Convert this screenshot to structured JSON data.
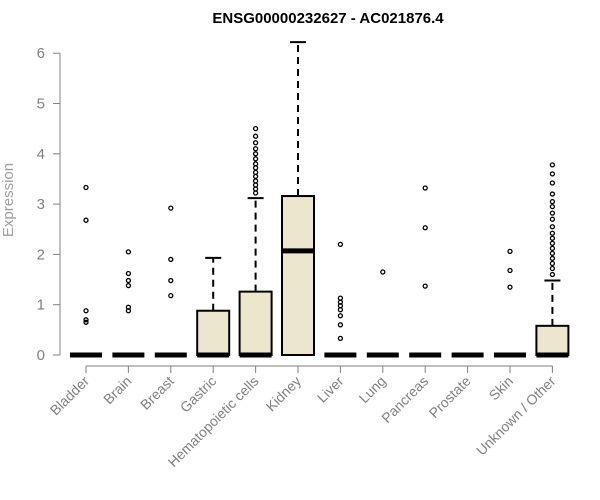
{
  "chart_data": {
    "type": "box",
    "title": "ENSG00000232627 - AC021876.4",
    "ylabel": "Expression",
    "xlabel": "",
    "ylim": [
      0,
      6
    ],
    "yticks": [
      0,
      1,
      2,
      3,
      4,
      5,
      6
    ],
    "grid": false,
    "legend": "none",
    "box_fill": "#ede6cf",
    "box_stroke": "#000000",
    "categories": [
      "Bladder",
      "Brain",
      "Breast",
      "Gastric",
      "Hematopoietic cells",
      "Kidney",
      "Liver",
      "Lung",
      "Pancreas",
      "Prostate",
      "Skin",
      "Unknown / Other"
    ],
    "boxes": [
      {
        "category": "Bladder",
        "whisker_low": 0,
        "q1": 0,
        "median": 0,
        "q3": 0,
        "whisker_high": 0,
        "outliers": [
          0.65,
          0.7,
          0.88,
          2.68,
          3.33
        ]
      },
      {
        "category": "Brain",
        "whisker_low": 0,
        "q1": 0,
        "median": 0,
        "q3": 0,
        "whisker_high": 0,
        "outliers": [
          0.88,
          0.95,
          1.38,
          1.48,
          1.62,
          2.05
        ]
      },
      {
        "category": "Breast",
        "whisker_low": 0,
        "q1": 0,
        "median": 0,
        "q3": 0,
        "whisker_high": 0,
        "outliers": [
          1.18,
          1.48,
          1.9,
          2.92
        ]
      },
      {
        "category": "Gastric",
        "whisker_low": 0,
        "q1": 0,
        "median": 0,
        "q3": 0.88,
        "whisker_high": 1.93,
        "outliers": []
      },
      {
        "category": "Hematopoietic cells",
        "whisker_low": 0,
        "q1": 0,
        "median": 0,
        "q3": 1.26,
        "whisker_high": 3.12,
        "outliers": [
          3.22,
          3.3,
          3.38,
          3.46,
          3.55,
          3.63,
          3.72,
          3.8,
          3.9,
          4.0,
          4.1,
          4.22,
          4.35,
          4.5
        ]
      },
      {
        "category": "Kidney",
        "whisker_low": 0,
        "q1": 0,
        "median": 2.07,
        "q3": 3.16,
        "whisker_high": 6.22,
        "outliers": []
      },
      {
        "category": "Liver",
        "whisker_low": 0,
        "q1": 0,
        "median": 0,
        "q3": 0,
        "whisker_high": 0,
        "outliers": [
          0.33,
          0.6,
          0.78,
          0.9,
          0.98,
          1.05,
          1.13,
          2.2
        ]
      },
      {
        "category": "Lung",
        "whisker_low": 0,
        "q1": 0,
        "median": 0,
        "q3": 0,
        "whisker_high": 0,
        "outliers": [
          1.65
        ]
      },
      {
        "category": "Pancreas",
        "whisker_low": 0,
        "q1": 0,
        "median": 0,
        "q3": 0,
        "whisker_high": 0,
        "outliers": [
          1.37,
          2.53,
          3.32
        ]
      },
      {
        "category": "Prostate",
        "whisker_low": 0,
        "q1": 0,
        "median": 0,
        "q3": 0,
        "whisker_high": 0,
        "outliers": []
      },
      {
        "category": "Skin",
        "whisker_low": 0,
        "q1": 0,
        "median": 0,
        "q3": 0,
        "whisker_high": 0,
        "outliers": [
          1.35,
          1.68,
          2.06
        ]
      },
      {
        "category": "Unknown / Other",
        "whisker_low": 0,
        "q1": 0,
        "median": 0,
        "q3": 0.58,
        "whisker_high": 1.48,
        "outliers": [
          1.6,
          1.72,
          1.82,
          1.92,
          2.02,
          2.12,
          2.22,
          2.32,
          2.42,
          2.55,
          2.7,
          2.82,
          2.95,
          3.05,
          3.2,
          3.42,
          3.6,
          3.78
        ]
      }
    ]
  }
}
